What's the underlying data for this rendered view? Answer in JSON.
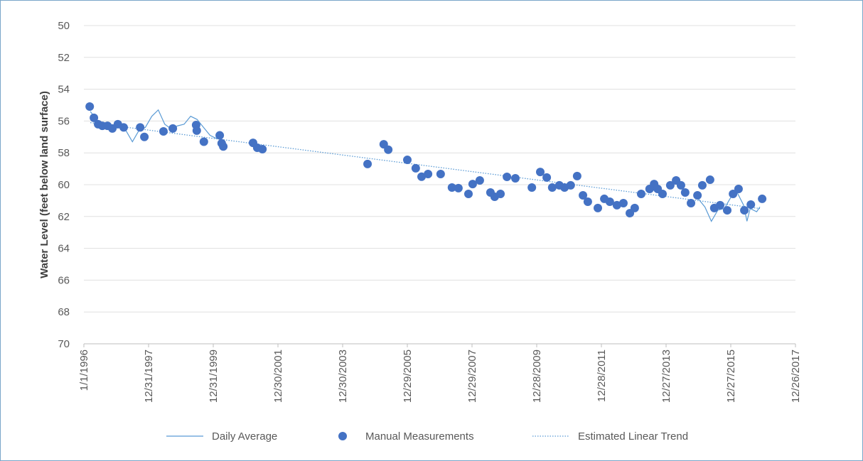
{
  "chart_data": {
    "type": "scatter-line",
    "y_axis_label": "Water Level (feet below land surface)",
    "xlim": [
      1996,
      2018
    ],
    "xticks": [
      {
        "value": 1996,
        "label": "1/1/1996"
      },
      {
        "value": 1998,
        "label": "12/31/1997"
      },
      {
        "value": 2000,
        "label": "12/31/1999"
      },
      {
        "value": 2002,
        "label": "12/30/2001"
      },
      {
        "value": 2004,
        "label": "12/30/2003"
      },
      {
        "value": 2006,
        "label": "12/29/2005"
      },
      {
        "value": 2008,
        "label": "12/29/2007"
      },
      {
        "value": 2010,
        "label": "12/28/2009"
      },
      {
        "value": 2012,
        "label": "12/28/2011"
      },
      {
        "value": 2014,
        "label": "12/27/2013"
      },
      {
        "value": 2016,
        "label": "12/27/2015"
      },
      {
        "value": 2018,
        "label": "12/26/2017"
      }
    ],
    "ylim": [
      50,
      70
    ],
    "y_inverted": true,
    "yticks": [
      50,
      52,
      54,
      56,
      58,
      60,
      62,
      64,
      66,
      68,
      70
    ],
    "grid": true,
    "legend": "bottom",
    "series": [
      {
        "name": "Daily Average",
        "kind": "line",
        "color": "#5b9bd5",
        "x": [
          1996.2,
          1996.5,
          1996.8,
          1997.1,
          1997.3,
          1997.5,
          1997.7,
          1997.9,
          1998.1,
          1998.3,
          1998.5,
          1998.7,
          1998.9,
          1999.1,
          1999.3,
          1999.5,
          1999.7,
          1999.9,
          2000.1,
          2000.3,
          2008,
          2015.0,
          2015.2,
          2015.4,
          2015.6,
          2015.8,
          2016.0,
          2016.2,
          2016.4,
          2016.5,
          2016.6,
          2016.8,
          2016.9
        ],
        "values": [
          55.4,
          56.2,
          56.3,
          56.3,
          56.6,
          57.3,
          56.6,
          56.4,
          55.7,
          55.3,
          56.2,
          56.5,
          56.3,
          56.2,
          55.7,
          55.9,
          56.4,
          56.9,
          57.1,
          56.9,
          null,
          60.9,
          61.4,
          62.3,
          61.6,
          61.5,
          60.8,
          60.5,
          61.3,
          62.3,
          61.5,
          61.7,
          61.4
        ]
      },
      {
        "name": "Manual Measurements",
        "kind": "marker",
        "color": "#4472c4",
        "x": [
          1996.18,
          1996.31,
          1996.44,
          1996.57,
          1996.73,
          1996.88,
          1997.05,
          1997.23,
          1997.74,
          1997.87,
          1998.46,
          1998.75,
          1999.47,
          1999.49,
          1999.71,
          2000.2,
          2000.26,
          2000.31,
          2001.23,
          2001.36,
          2001.52,
          2004.77,
          2005.27,
          2005.41,
          2006.0,
          2006.26,
          2006.44,
          2006.64,
          2007.03,
          2007.38,
          2007.58,
          2007.89,
          2008.02,
          2008.24,
          2008.57,
          2008.7,
          2008.88,
          2009.08,
          2009.34,
          2009.85,
          2010.11,
          2010.31,
          2010.48,
          2010.7,
          2010.86,
          2011.05,
          2011.25,
          2011.43,
          2011.58,
          2011.89,
          2012.09,
          2012.26,
          2012.48,
          2012.68,
          2012.88,
          2013.03,
          2013.23,
          2013.49,
          2013.63,
          2013.74,
          2013.89,
          2014.13,
          2014.31,
          2014.46,
          2014.59,
          2014.77,
          2014.97,
          2015.12,
          2015.36,
          2015.49,
          2015.67,
          2015.89,
          2016.07,
          2016.24,
          2016.42,
          2016.62,
          2016.97
        ],
        "values": [
          55.09,
          55.8,
          56.2,
          56.3,
          56.3,
          56.47,
          56.2,
          56.4,
          56.4,
          57.0,
          56.65,
          56.47,
          56.25,
          56.6,
          57.3,
          56.9,
          57.4,
          57.6,
          57.37,
          57.68,
          57.77,
          58.7,
          57.46,
          57.8,
          58.44,
          58.97,
          59.5,
          59.33,
          59.33,
          60.18,
          60.22,
          60.58,
          59.96,
          59.73,
          60.49,
          60.76,
          60.58,
          59.51,
          59.6,
          60.18,
          59.2,
          59.55,
          60.18,
          60.04,
          60.18,
          60.04,
          59.46,
          60.67,
          61.07,
          61.47,
          60.89,
          61.07,
          61.29,
          61.16,
          61.79,
          61.47,
          60.58,
          60.27,
          59.96,
          60.27,
          60.58,
          60.04,
          59.73,
          60.04,
          60.49,
          61.16,
          60.67,
          60.04,
          59.69,
          61.47,
          61.29,
          61.61,
          60.58,
          60.27,
          61.61,
          61.25,
          60.89
        ]
      },
      {
        "name": "Estimated Linear Trend",
        "kind": "dotted",
        "color": "#5b9bd5",
        "x": [
          1996.2,
          2016.9
        ],
        "values": [
          56.1,
          61.5
        ]
      }
    ]
  }
}
